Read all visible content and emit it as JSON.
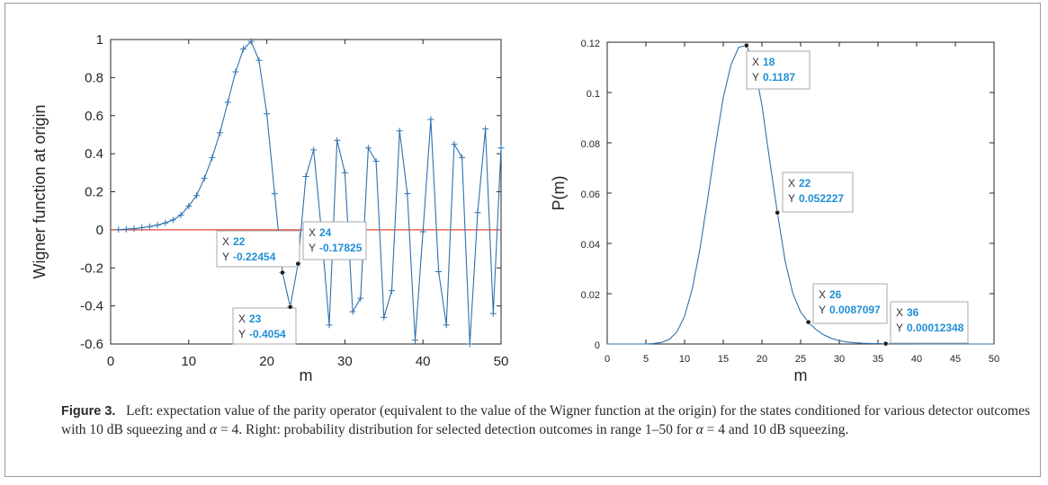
{
  "chart_data": [
    {
      "type": "line",
      "xlabel": "m",
      "ylabel": "Wigner function at origin",
      "xlim": [
        0,
        50
      ],
      "ylim": [
        -0.6,
        1
      ],
      "xticks": [
        "0",
        "10",
        "20",
        "30",
        "40",
        "50"
      ],
      "yticks": [
        "-0.6",
        "-0.4",
        "-0.2",
        "0",
        "0.2",
        "0.4",
        "0.6",
        "0.8",
        "1"
      ],
      "reference_line": {
        "y": 0,
        "color": "#e8473b"
      },
      "series": [
        {
          "color": "#2d72b0",
          "marker": "+",
          "x": [
            1,
            2,
            3,
            4,
            5,
            6,
            7,
            8,
            9,
            10,
            11,
            12,
            13,
            14,
            15,
            16,
            17,
            18,
            19,
            20,
            21,
            22,
            23,
            24,
            25,
            26,
            27,
            28,
            29,
            30,
            31,
            32,
            33,
            34,
            35,
            36,
            37,
            38,
            39,
            40,
            41,
            42,
            43,
            44,
            45,
            46,
            47,
            48,
            49,
            50
          ],
          "y": [
            0.001,
            0.003,
            0.006,
            0.011,
            0.017,
            0.025,
            0.036,
            0.052,
            0.078,
            0.125,
            0.18,
            0.27,
            0.38,
            0.51,
            0.67,
            0.83,
            0.95,
            0.99,
            0.89,
            0.61,
            0.19,
            -0.22454,
            -0.4054,
            -0.17825,
            0.28,
            0.42,
            -0.01,
            -0.5,
            0.47,
            0.3,
            -0.43,
            -0.36,
            0.43,
            0.36,
            -0.46,
            -0.32,
            0.52,
            0.19,
            -0.58,
            -0.01,
            0.58,
            -0.22,
            -0.5,
            0.45,
            0.38,
            -0.6,
            0.09,
            0.53,
            -0.44,
            0.43
          ]
        }
      ],
      "datatips": [
        {
          "x_label": "X",
          "x": "22",
          "y_label": "Y",
          "y": "-0.22454"
        },
        {
          "x_label": "X",
          "x": "24",
          "y_label": "Y",
          "y": "-0.17825"
        },
        {
          "x_label": "X",
          "x": "23",
          "y_label": "Y",
          "y": "-0.4054"
        }
      ]
    },
    {
      "type": "line",
      "xlabel": "m",
      "ylabel": "P(m)",
      "xlim": [
        0,
        50
      ],
      "ylim": [
        0,
        0.12
      ],
      "xticks": [
        "0",
        "5",
        "10",
        "15",
        "20",
        "25",
        "30",
        "35",
        "40",
        "45",
        "50"
      ],
      "yticks": [
        "0",
        "0.02",
        "0.04",
        "0.06",
        "0.08",
        "0.1",
        "0.12"
      ],
      "series": [
        {
          "color": "#2d72b0",
          "x": [
            0,
            1,
            2,
            3,
            4,
            5,
            6,
            7,
            8,
            9,
            10,
            11,
            12,
            13,
            14,
            15,
            16,
            17,
            18,
            19,
            20,
            21,
            22,
            23,
            24,
            25,
            26,
            27,
            28,
            29,
            30,
            31,
            32,
            33,
            34,
            35,
            36,
            37,
            38,
            39,
            40,
            41,
            42,
            43,
            44,
            45,
            46,
            47,
            48,
            49,
            50
          ],
          "y": [
            0,
            0,
            0,
            0,
            0,
            0,
            0.0002,
            0.0006,
            0.0018,
            0.0048,
            0.011,
            0.022,
            0.038,
            0.058,
            0.079,
            0.098,
            0.111,
            0.118,
            0.1187,
            0.111,
            0.095,
            0.073,
            0.052227,
            0.033,
            0.02,
            0.0127,
            0.0087097,
            0.0057,
            0.0036,
            0.0022,
            0.0013,
            0.0008,
            0.0005,
            0.0003,
            0.0002,
            0.00016,
            0.00012348,
            0.0001,
            8e-05,
            6e-05,
            4e-05,
            3e-05,
            2e-05,
            1e-05,
            1e-05,
            0,
            0,
            0,
            0,
            0,
            0
          ]
        }
      ],
      "datatips": [
        {
          "x_label": "X",
          "x": "18",
          "y_label": "Y",
          "y": "0.1187"
        },
        {
          "x_label": "X",
          "x": "22",
          "y_label": "Y",
          "y": "0.052227"
        },
        {
          "x_label": "X",
          "x": "26",
          "y_label": "Y",
          "y": "0.0087097"
        },
        {
          "x_label": "X",
          "x": "36",
          "y_label": "Y",
          "y": "0.00012348"
        }
      ]
    }
  ],
  "caption": {
    "label": "Figure 3.",
    "line1": "Left: expectation value of the parity operator (equivalent to the value of the Wigner function at the origin) for the",
    "line2a": "states conditioned for various detector outcomes with 10 dB squeezing and ",
    "alpha": "α",
    "line2b": " = 4. Right: probability distribution for selected",
    "line3a": "detection outcomes in range 1–50 for ",
    "line3b": " = 4 and 10 dB squeezing."
  },
  "colors": {
    "series": "#2d72b0",
    "zero_line": "#e8473b",
    "datatip_value": "#1f8fd6"
  }
}
